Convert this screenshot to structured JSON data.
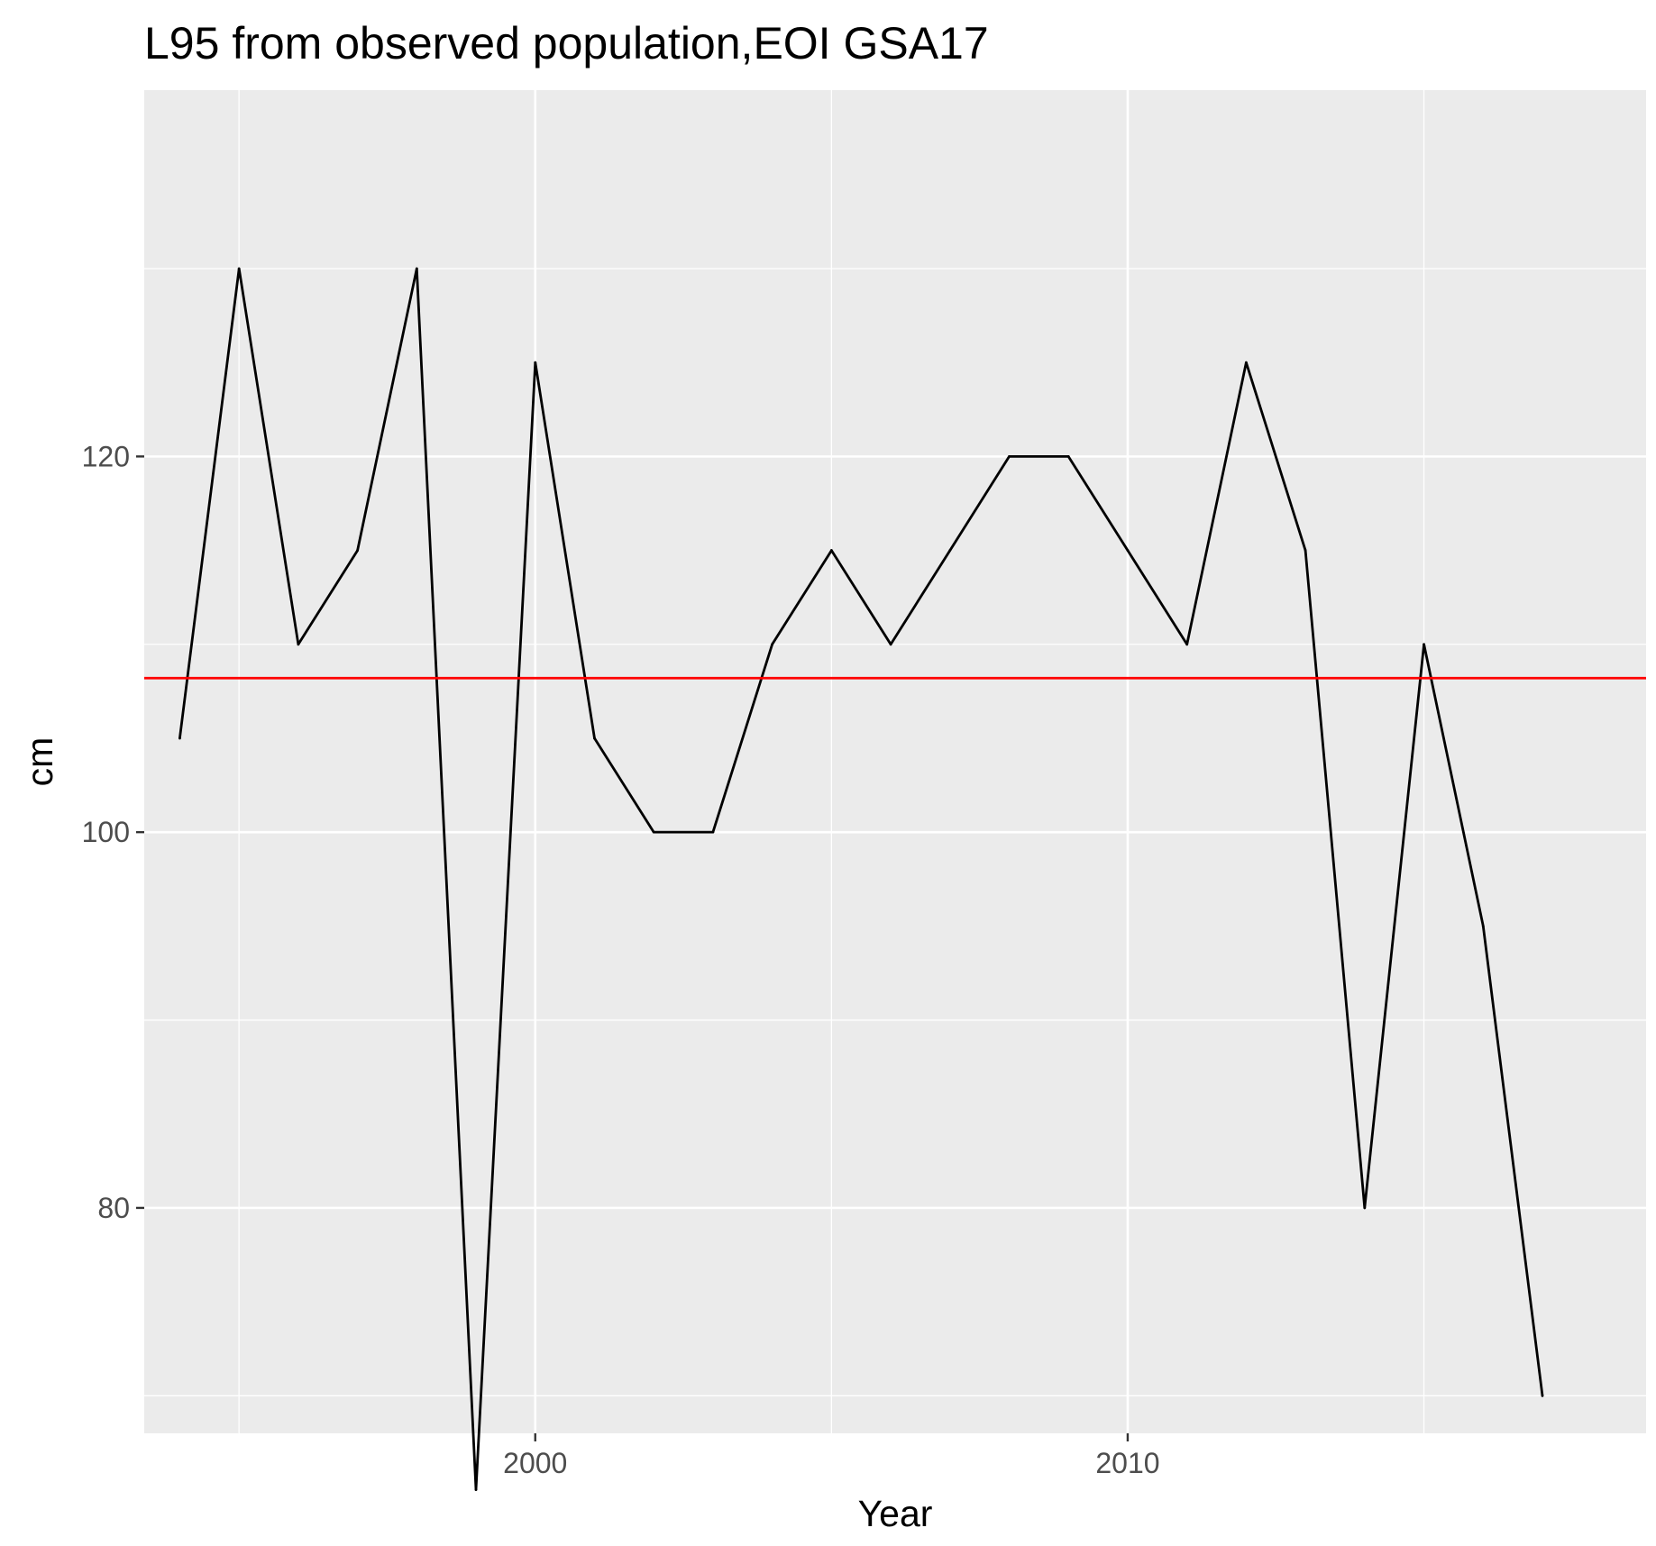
{
  "chart_data": {
    "type": "line",
    "title": "L95 from observed population,EOI GSA17",
    "xlabel": "Year",
    "ylabel": "cm",
    "xlim": [
      1993.4,
      2018.75
    ],
    "ylim": [
      68,
      139.5
    ],
    "x_ticks": [
      2000,
      2010
    ],
    "x_minor_ticks": [
      1995,
      2005,
      2015
    ],
    "y_ticks": [
      80,
      100,
      120
    ],
    "y_minor_ticks": [
      70,
      90,
      110,
      130
    ],
    "grid": true,
    "legend": "none",
    "colors": {
      "panel": "#ebebeb",
      "grid": "#ffffff",
      "line": "#000000",
      "reference": "#ff0000",
      "tick_label": "#4d4d4d"
    },
    "series": [
      {
        "x": [
          1994,
          1995,
          1996,
          1997,
          1998,
          1999,
          2000,
          2001,
          2002,
          2003,
          2004,
          2005,
          2006,
          2007,
          2008,
          2009,
          2010,
          2011,
          2012,
          2013,
          2014,
          2015,
          2016,
          2017
        ],
        "y": [
          105,
          130,
          110,
          115,
          130,
          65,
          125,
          105,
          100,
          100,
          110,
          115,
          110,
          115,
          120,
          120,
          115,
          110,
          125,
          115,
          80,
          110,
          95,
          70
        ],
        "color": "#000000"
      }
    ],
    "reference_line": {
      "y": 108.2,
      "color": "#ff0000"
    }
  }
}
